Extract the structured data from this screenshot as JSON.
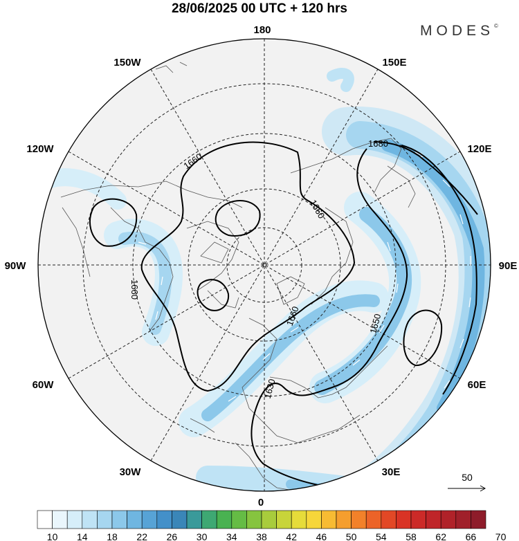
{
  "title": "28/06/2025  00 UTC  + 120 hrs",
  "brand": "MODES",
  "brand_mark": "©",
  "longitude_labels": {
    "top": "180",
    "bottom": "0",
    "left": "90W",
    "right": "90E",
    "upper_left_1": "150W",
    "upper_left_2": "120W",
    "lower_left_1": "60W",
    "lower_left_2": "30W",
    "upper_right_1": "150E",
    "upper_right_2": "120E",
    "lower_right_1": "60E",
    "lower_right_2": "30E"
  },
  "contour_labels": [
    "1660",
    "1660",
    "1680",
    "1660",
    "1660",
    "1650",
    "1630"
  ],
  "wind_reference": "50",
  "colorbar": {
    "ticks": [
      "10",
      "14",
      "18",
      "22",
      "26",
      "30",
      "34",
      "38",
      "42",
      "46",
      "50",
      "54",
      "58",
      "62",
      "66",
      "70"
    ],
    "colors": [
      "#ffffff",
      "#eaf6fc",
      "#d6eef9",
      "#bfe3f5",
      "#a6d6f0",
      "#8cc8ea",
      "#6fb6e1",
      "#57a3d6",
      "#4390c9",
      "#3a86b8",
      "#3a9a9a",
      "#3ea873",
      "#49b251",
      "#65bc45",
      "#86c43f",
      "#a8cc3c",
      "#c8d43a",
      "#e6dc3a",
      "#f6d63a",
      "#f7bb33",
      "#f59e2e",
      "#f2812a",
      "#ec6328",
      "#e24826",
      "#d93325",
      "#cc2a28",
      "#bf2529",
      "#b02229",
      "#a0202a",
      "#8e1c2a"
    ]
  }
}
